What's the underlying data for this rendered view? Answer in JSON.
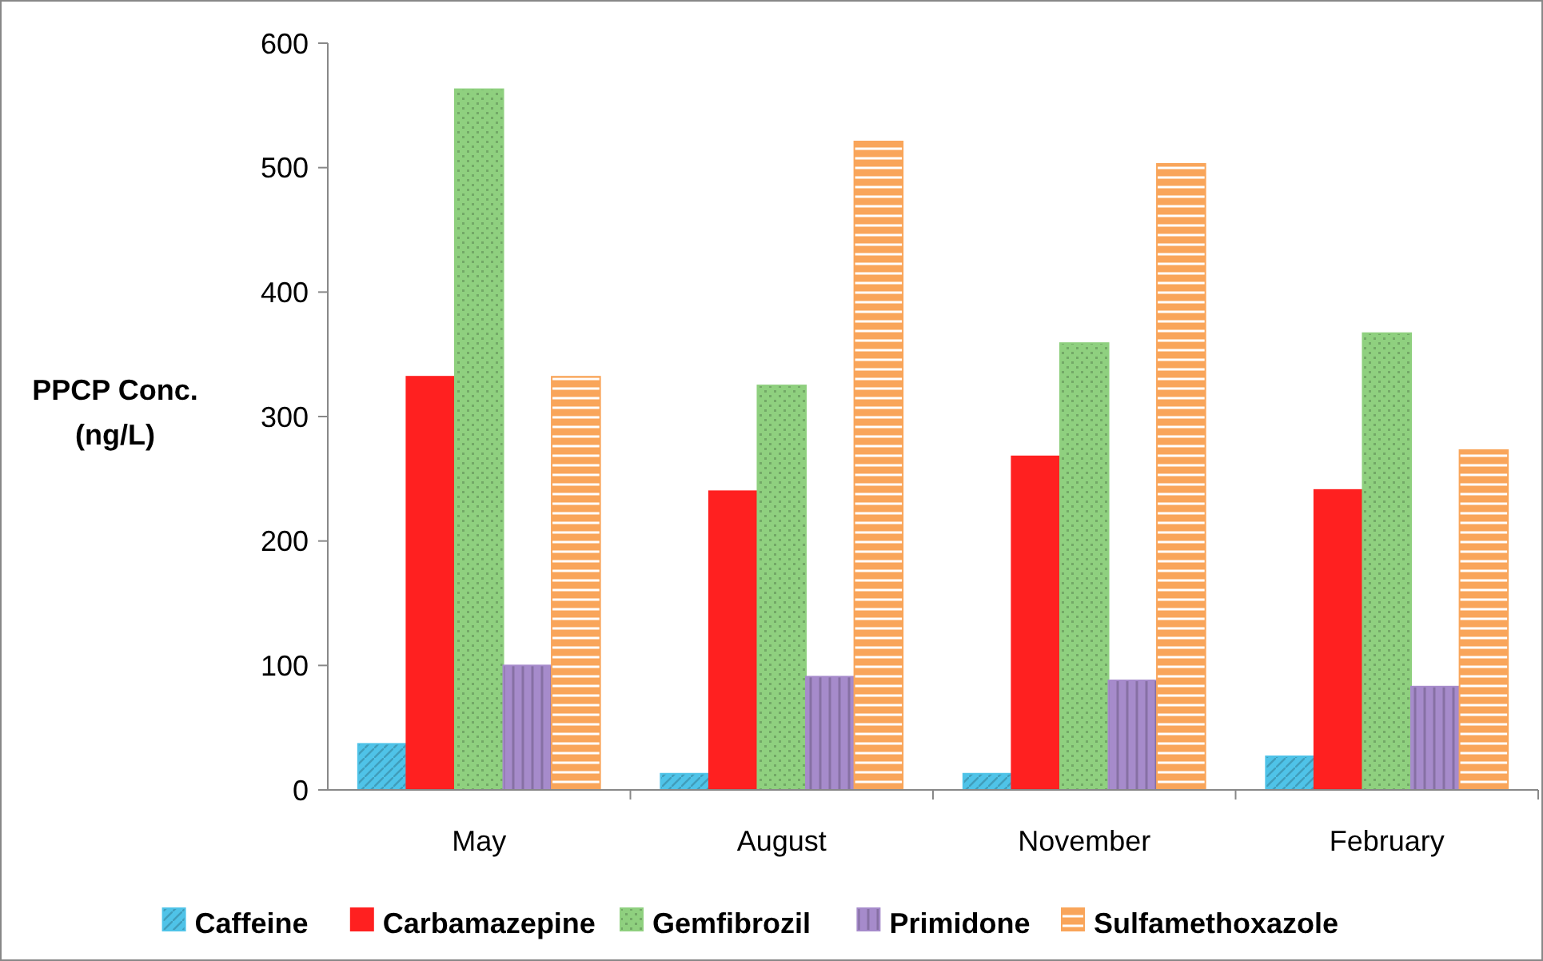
{
  "chart_data": {
    "type": "bar",
    "ylabel": "PPCP Conc. (ng/L)",
    "categories": [
      "May",
      "August",
      "November",
      "February"
    ],
    "series": [
      {
        "name": "Caffeine",
        "color": "#4fc3e8",
        "values": [
          37,
          13,
          13,
          27
        ]
      },
      {
        "name": "Carbamazepine",
        "color": "#ff2020",
        "values": [
          332,
          240,
          268,
          241
        ]
      },
      {
        "name": "Gemfibrozil",
        "color": "#8fd07f",
        "values": [
          563,
          325,
          359,
          367
        ]
      },
      {
        "name": "Primidone",
        "color": "#a68bcb",
        "values": [
          100,
          91,
          88,
          83
        ]
      },
      {
        "name": "Sulfamethoxazole",
        "color": "#f9a55a",
        "values": [
          332,
          521,
          503,
          273
        ]
      }
    ],
    "ylim": [
      0,
      600
    ],
    "yticks": [
      0,
      100,
      200,
      300,
      400,
      500,
      600
    ],
    "grid": false,
    "legend": "bottom"
  }
}
